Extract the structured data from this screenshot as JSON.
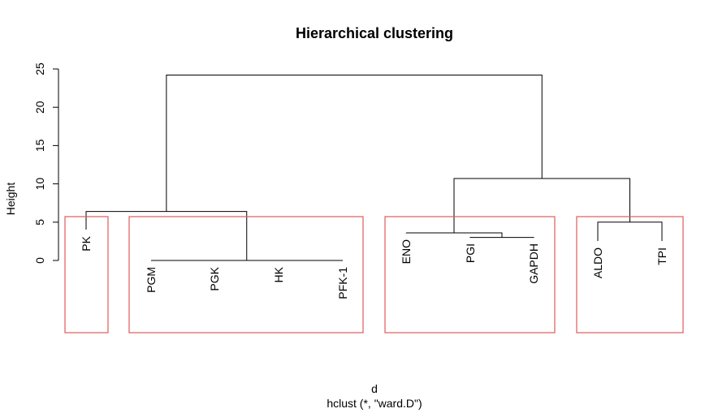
{
  "chart_data": {
    "type": "dendrogram",
    "title": "Hierarchical clustering",
    "xlabel": "d",
    "sublabel": "hclust (*, \"ward.D\")",
    "ylabel": "Height",
    "ylim": [
      0,
      25
    ],
    "yticks": [
      0,
      5,
      10,
      15,
      20,
      25
    ],
    "leaves": [
      "PK",
      "PGM",
      "PGK",
      "HK",
      "PFK-1",
      "ENO",
      "PGI",
      "GAPDH",
      "ALDO",
      "TPI"
    ],
    "merges": [
      {
        "left": "PGM",
        "right": "PGK",
        "height": 0
      },
      {
        "left": "HK",
        "right": "PFK-1",
        "height": 0
      },
      {
        "left": "PGM+PGK",
        "right": "HK+PFK-1",
        "height": 0
      },
      {
        "left": "PGI",
        "right": "GAPDH",
        "height": 3.0
      },
      {
        "left": "ENO",
        "right": "PGI+GAPDH",
        "height": 3.6
      },
      {
        "left": "ALDO",
        "right": "TPI",
        "height": 5.0
      },
      {
        "left": "PK",
        "right": "PGM+PGK+HK+PFK-1",
        "height": 6.4
      },
      {
        "left": "ENO+PGI+GAPDH",
        "right": "ALDO+TPI",
        "height": 10.7
      },
      {
        "left": "all-left",
        "right": "all-right",
        "height": 24.2
      }
    ],
    "cluster_groups": [
      [
        "PK"
      ],
      [
        "PGM",
        "PGK",
        "HK",
        "PFK-1"
      ],
      [
        "ENO",
        "PGI",
        "GAPDH"
      ],
      [
        "ALDO",
        "TPI"
      ]
    ],
    "box_color": "#e05a5a"
  }
}
